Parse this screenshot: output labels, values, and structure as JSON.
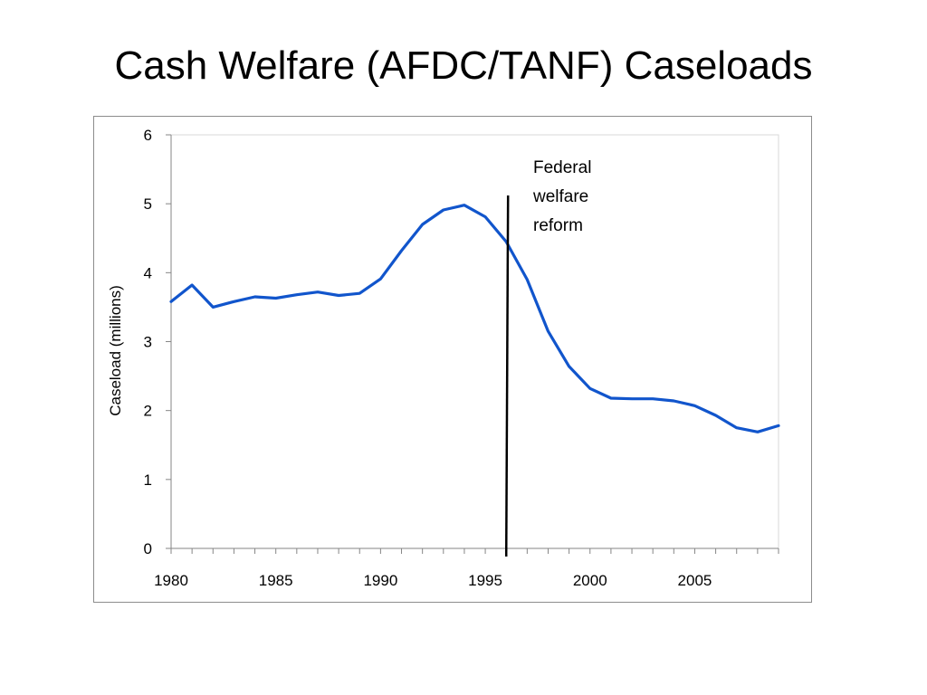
{
  "slide": {
    "title": "Cash Welfare (AFDC/TANF) Caseloads"
  },
  "chart_data": {
    "type": "line",
    "title": "Cash Welfare (AFDC/TANF) Caseloads",
    "xlabel": "",
    "ylabel": "Caseload (millions)",
    "xlim": [
      1980,
      2009
    ],
    "ylim": [
      0,
      6
    ],
    "yticks": [
      0,
      1,
      2,
      3,
      4,
      5,
      6
    ],
    "xticks": [
      1980,
      1985,
      1990,
      1995,
      2000,
      2005
    ],
    "grid": false,
    "legend": "none",
    "series": [
      {
        "color": "#1155cc",
        "x": [
          1980,
          1981,
          1982,
          1983,
          1984,
          1985,
          1986,
          1987,
          1988,
          1989,
          1990,
          1991,
          1992,
          1993,
          1994,
          1995,
          1996,
          1997,
          1998,
          1999,
          2000,
          2001,
          2002,
          2003,
          2004,
          2005,
          2006,
          2007,
          2008,
          2009
        ],
        "y": [
          3.58,
          3.82,
          3.5,
          3.58,
          3.65,
          3.63,
          3.68,
          3.72,
          3.67,
          3.7,
          3.91,
          4.32,
          4.7,
          4.91,
          4.98,
          4.81,
          4.45,
          3.9,
          3.15,
          2.64,
          2.32,
          2.18,
          2.17,
          2.17,
          2.14,
          2.07,
          1.93,
          1.75,
          1.69,
          1.78
        ]
      }
    ],
    "annotation": {
      "x": 1996,
      "text_lines": [
        "Federal",
        "welfare",
        "reform"
      ],
      "line_color": "#000000"
    }
  }
}
